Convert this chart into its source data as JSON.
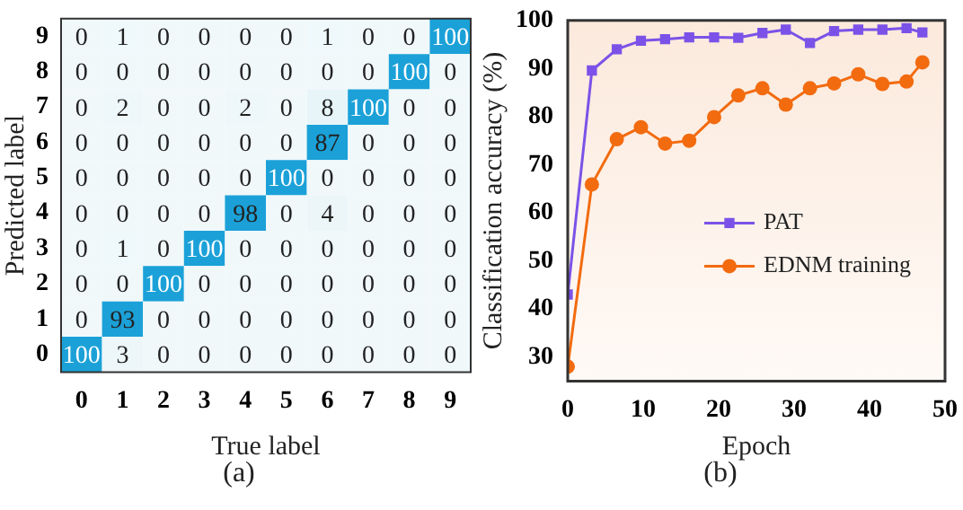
{
  "chart_data": [
    {
      "type": "heatmap",
      "xlabel": "True label",
      "ylabel": "Predicted label",
      "annotations": [
        "(a)"
      ],
      "color": "#1ba1d8",
      "data_labels": true,
      "categories": [
        "0",
        "1",
        "2",
        "3",
        "4",
        "5",
        "6",
        "7",
        "8",
        "9"
      ],
      "y_categories": [
        "9",
        "8",
        "7",
        "6",
        "5",
        "4",
        "3",
        "2",
        "1",
        "0"
      ],
      "cells": [
        [
          0,
          1,
          0,
          0,
          0,
          0,
          1,
          0,
          0,
          100
        ],
        [
          0,
          0,
          0,
          0,
          0,
          0,
          0,
          0,
          100,
          0
        ],
        [
          0,
          2,
          0,
          0,
          2,
          0,
          8,
          100,
          0,
          0
        ],
        [
          0,
          0,
          0,
          0,
          0,
          0,
          87,
          0,
          0,
          0
        ],
        [
          0,
          0,
          0,
          0,
          0,
          100,
          0,
          0,
          0,
          0
        ],
        [
          0,
          0,
          0,
          0,
          98,
          0,
          4,
          0,
          0,
          0
        ],
        [
          0,
          1,
          0,
          100,
          0,
          0,
          0,
          0,
          0,
          0
        ],
        [
          0,
          0,
          100,
          0,
          0,
          0,
          0,
          0,
          0,
          0
        ],
        [
          0,
          93,
          0,
          0,
          0,
          0,
          0,
          0,
          0,
          0
        ],
        [
          100,
          3,
          0,
          0,
          0,
          0,
          0,
          0,
          0,
          0
        ]
      ]
    },
    {
      "type": "line",
      "xlabel": "Epoch",
      "ylabel": "Classification accuracy (%)",
      "annotations": [
        "(b)"
      ],
      "xlim": [
        0,
        50
      ],
      "xticks": [
        0,
        10,
        20,
        30,
        40,
        50
      ],
      "ylim": [
        25,
        100
      ],
      "yticks": [
        30,
        40,
        50,
        60,
        70,
        80,
        90,
        100
      ],
      "legend": "bottom right",
      "x": [
        0,
        3.2,
        6.5,
        9.7,
        12.9,
        16.1,
        19.4,
        22.6,
        25.8,
        28.9,
        32.1,
        35.3,
        38.5,
        41.7,
        44.9,
        47
      ],
      "series": [
        {
          "name": "PAT",
          "color": "#7b52e8",
          "marker": "square",
          "values": [
            43,
            89.6,
            94,
            95.8,
            96.1,
            96.5,
            96.5,
            96.4,
            97.4,
            98.1,
            95.3,
            97.8,
            98.1,
            98.1,
            98.4,
            97.5
          ]
        },
        {
          "name": "EDNM training",
          "color": "#f26b0f",
          "marker": "circle",
          "values": [
            28,
            65.9,
            75.3,
            77.8,
            74.4,
            75,
            79.9,
            84.4,
            85.9,
            82.5,
            85.9,
            86.9,
            88.8,
            86.8,
            87.3,
            91.3
          ]
        }
      ]
    }
  ]
}
